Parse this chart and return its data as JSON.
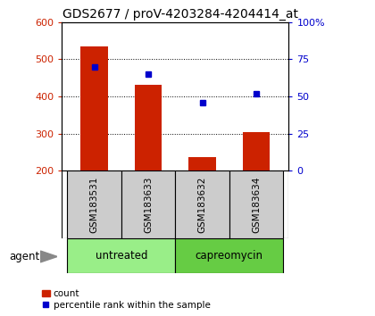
{
  "title": "GDS2677 / proV-4203284-4204414_at",
  "samples": [
    "GSM183531",
    "GSM183633",
    "GSM183632",
    "GSM183634"
  ],
  "counts": [
    535,
    430,
    237,
    303
  ],
  "percentiles": [
    70,
    65,
    46,
    52
  ],
  "ylim_left": [
    200,
    600
  ],
  "ylim_right": [
    0,
    100
  ],
  "yticks_left": [
    200,
    300,
    400,
    500,
    600
  ],
  "yticks_right": [
    0,
    25,
    50,
    75,
    100
  ],
  "bar_color": "#cc2200",
  "dot_color": "#0000cc",
  "groups": [
    {
      "label": "untreated",
      "cols": [
        0,
        1
      ],
      "color": "#99ee88"
    },
    {
      "label": "capreomycin",
      "cols": [
        2,
        3
      ],
      "color": "#66cc44"
    }
  ],
  "tick_label_color_left": "#cc2200",
  "tick_label_color_right": "#0000cc",
  "agent_label": "agent",
  "legend_count_label": "count",
  "legend_pct_label": "percentile rank within the sample",
  "bar_width": 0.5,
  "x_positions": [
    0,
    1,
    2,
    3
  ],
  "plot_bg": "#ffffff",
  "sample_bg": "#cccccc",
  "title_fontsize": 10,
  "tick_fontsize": 8,
  "label_fontsize": 8
}
